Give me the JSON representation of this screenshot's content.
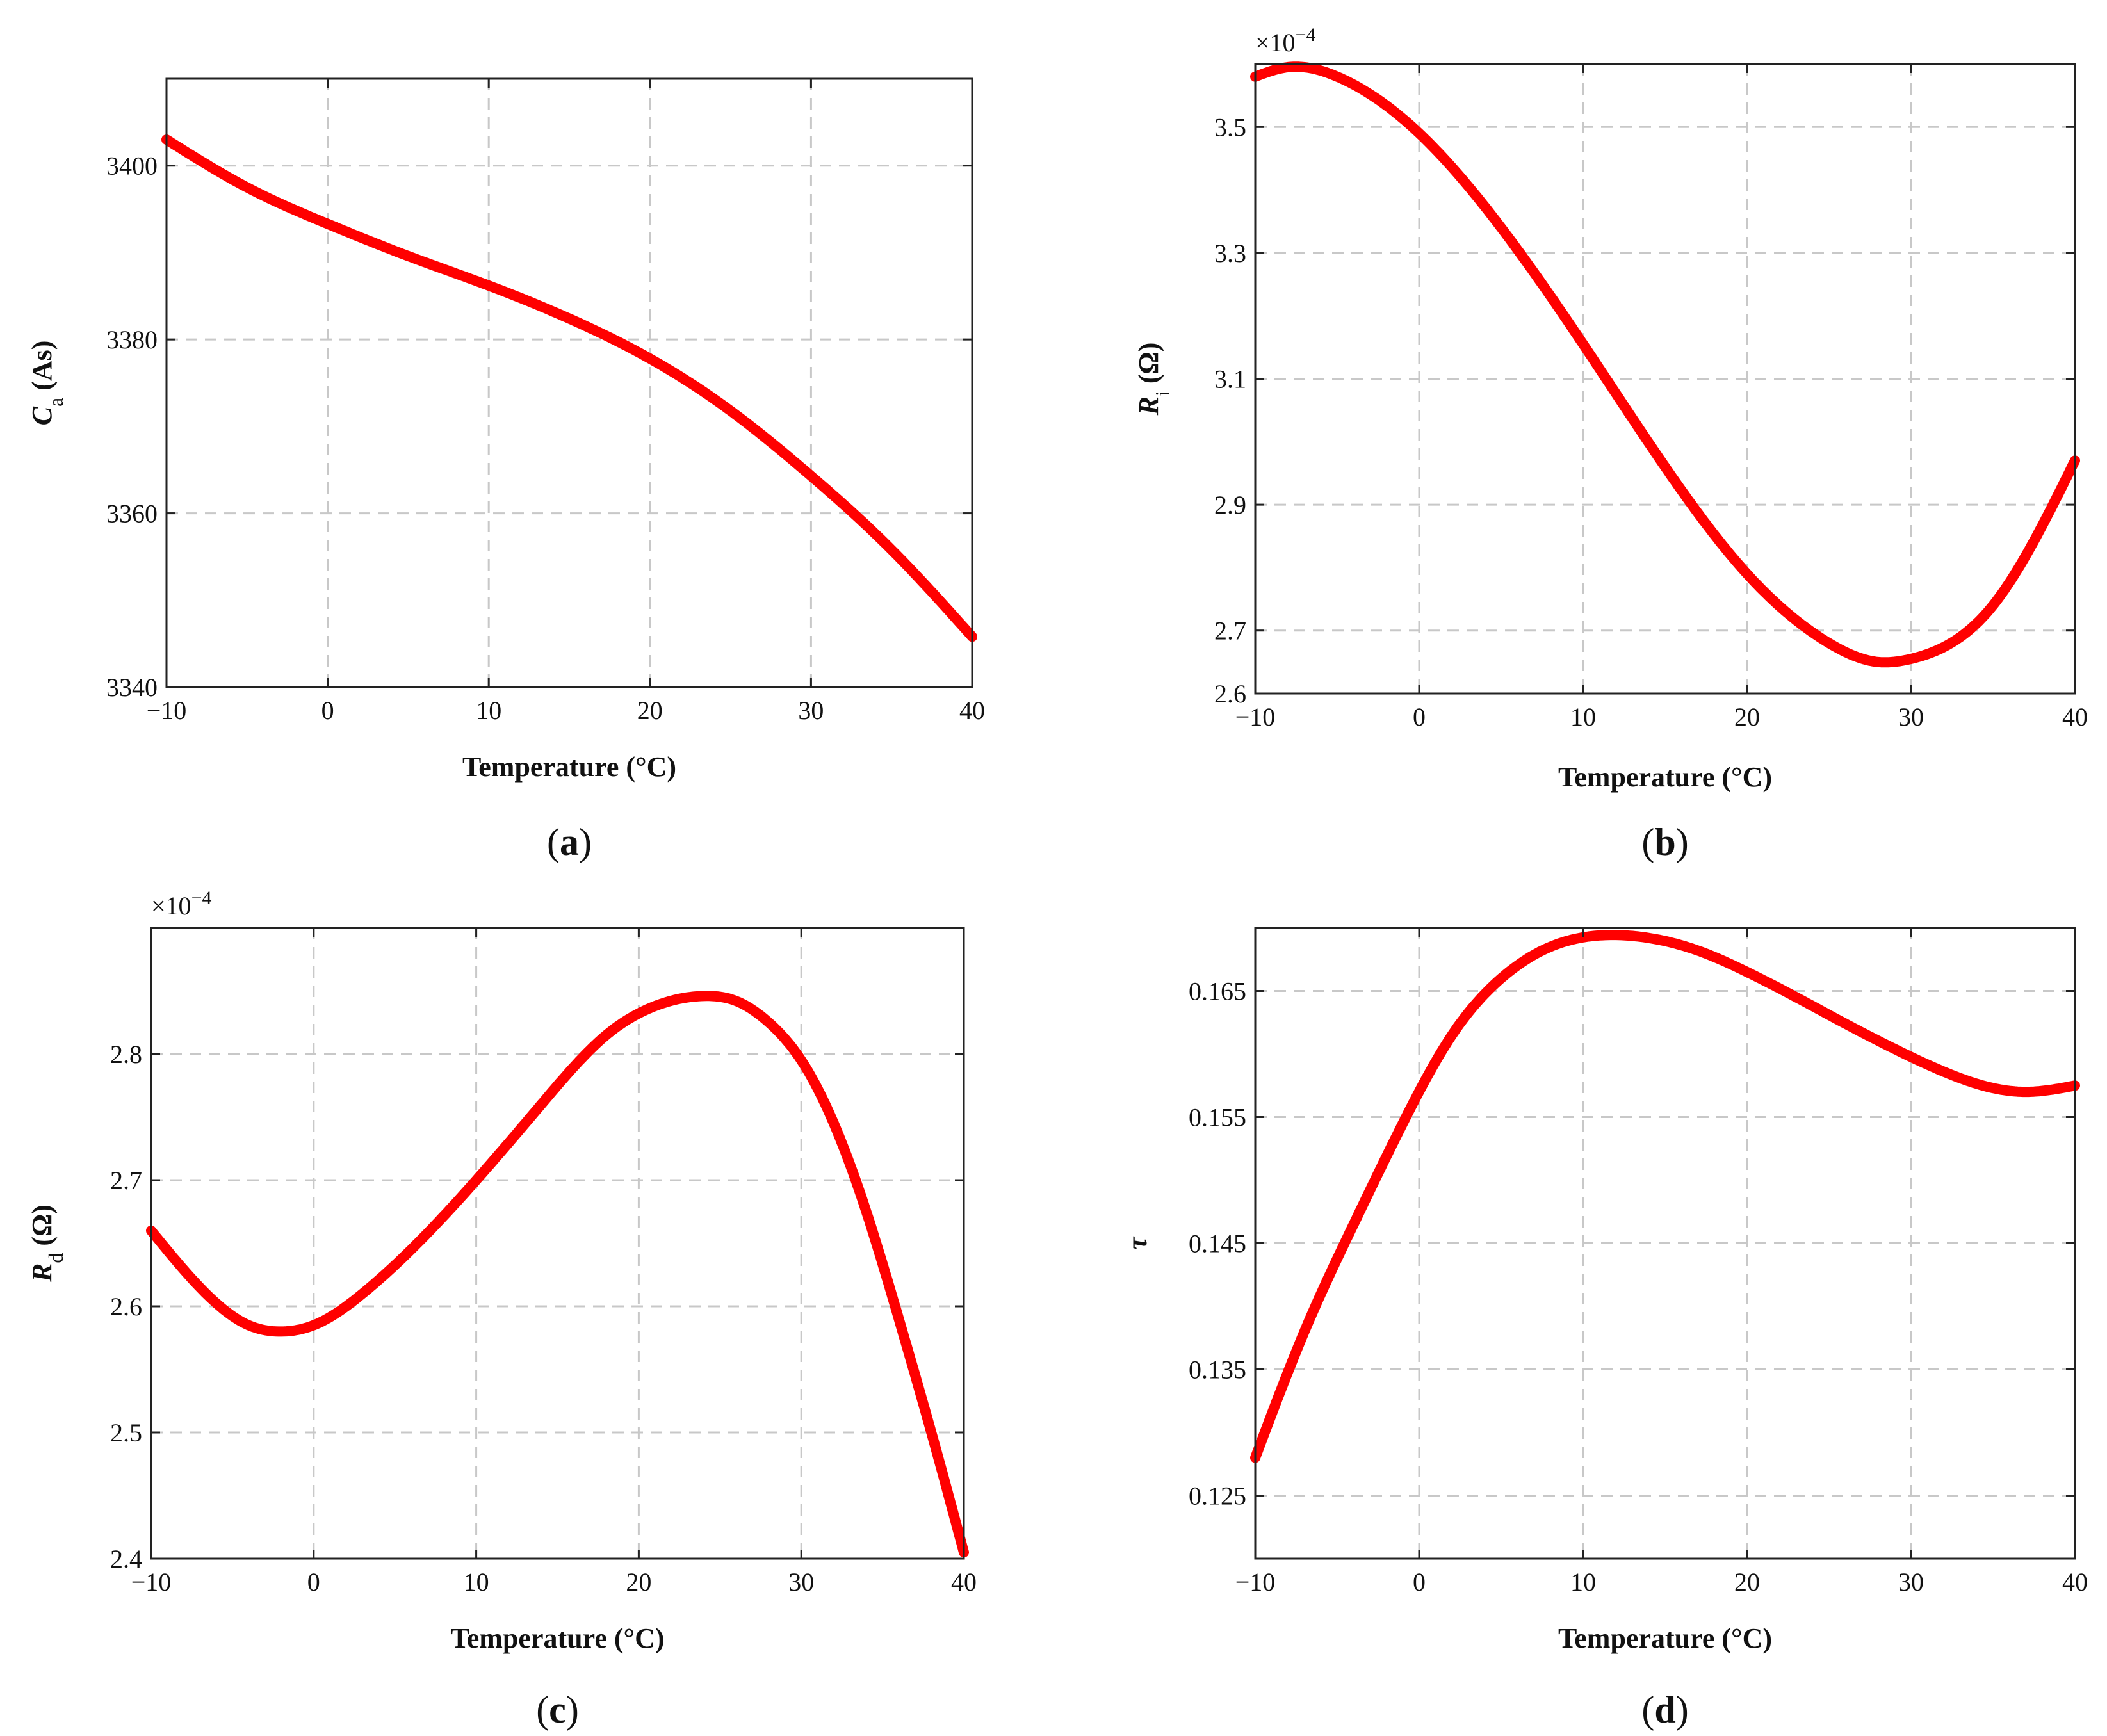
{
  "colors": {
    "curve": "#ff0000",
    "grid": "#c8c8c8",
    "axis": "#222222",
    "text": "#111111"
  },
  "chart_data": [
    {
      "id": "a",
      "type": "line",
      "caption_letter": "a",
      "xlabel": "Temperature (°C)",
      "ylabel_main": "C",
      "ylabel_sub": "a",
      "ylabel_unit": " (As)",
      "multiplier": "",
      "multiplier_exp": "",
      "xlim": [
        -10,
        40
      ],
      "ylim": [
        3340,
        3410
      ],
      "xticks": [
        -10,
        0,
        10,
        20,
        30,
        40
      ],
      "xtick_labels": [
        "−10",
        "0",
        "10",
        "20",
        "30",
        "40"
      ],
      "yticks": [
        3340,
        3360,
        3380,
        3400
      ],
      "ytick_labels": [
        "3340",
        "3360",
        "3380",
        "3400"
      ],
      "grid": true,
      "series": [
        {
          "name": "Ca",
          "x": [
            -10,
            -5,
            0,
            5,
            10,
            15,
            20,
            25,
            30,
            35,
            40
          ],
          "y": [
            3403,
            3397.5,
            3393.3,
            3389.6,
            3386.2,
            3382.4,
            3377.8,
            3371.8,
            3364.3,
            3355.8,
            3345.8
          ]
        }
      ]
    },
    {
      "id": "b",
      "type": "line",
      "caption_letter": "b",
      "xlabel": "Temperature (°C)",
      "ylabel_main": "R",
      "ylabel_sub": "i",
      "ylabel_unit": " (Ω)",
      "multiplier": "×10",
      "multiplier_exp": "−4",
      "xlim": [
        -10,
        40
      ],
      "ylim": [
        2.6,
        3.6
      ],
      "xticks": [
        -10,
        0,
        10,
        20,
        30,
        40
      ],
      "xtick_labels": [
        "−10",
        "0",
        "10",
        "20",
        "30",
        "40"
      ],
      "yticks": [
        2.6,
        2.7,
        2.9,
        3.1,
        3.3,
        3.5
      ],
      "ytick_labels": [
        "2.6",
        "2.7",
        "2.9",
        "3.1",
        "3.3",
        "3.5"
      ],
      "grid": true,
      "series": [
        {
          "name": "Ri",
          "x": [
            -10,
            -8,
            -5,
            0,
            5,
            10,
            15,
            20,
            25,
            28,
            30,
            35,
            40
          ],
          "y": [
            3.58,
            3.595,
            3.58,
            3.49,
            3.34,
            3.155,
            2.96,
            2.79,
            2.68,
            2.65,
            2.655,
            2.74,
            2.97
          ]
        }
      ]
    },
    {
      "id": "c",
      "type": "line",
      "caption_letter": "c",
      "xlabel": "Temperature (°C)",
      "ylabel_main": "R",
      "ylabel_sub": "d",
      "ylabel_unit": " (Ω)",
      "multiplier": "×10",
      "multiplier_exp": "−4",
      "xlim": [
        -10,
        40
      ],
      "ylim": [
        2.4,
        2.9
      ],
      "xticks": [
        -10,
        0,
        10,
        20,
        30,
        40
      ],
      "xtick_labels": [
        "−10",
        "0",
        "10",
        "20",
        "30",
        "40"
      ],
      "yticks": [
        2.4,
        2.5,
        2.6,
        2.7,
        2.8
      ],
      "ytick_labels": [
        "2.4",
        "2.5",
        "2.6",
        "2.7",
        "2.8"
      ],
      "grid": true,
      "series": [
        {
          "name": "Rd",
          "x": [
            -10,
            -7,
            -4,
            -2,
            0,
            3,
            6,
            10,
            14,
            18,
            21,
            24,
            26,
            28,
            30,
            32,
            34,
            36,
            38,
            40
          ],
          "y": [
            2.66,
            2.615,
            2.585,
            2.58,
            2.585,
            2.61,
            2.645,
            2.7,
            2.76,
            2.815,
            2.838,
            2.846,
            2.842,
            2.825,
            2.795,
            2.745,
            2.675,
            2.59,
            2.5,
            2.405
          ]
        }
      ]
    },
    {
      "id": "d",
      "type": "line",
      "caption_letter": "d",
      "xlabel": "Temperature (°C)",
      "ylabel_main": "τ",
      "ylabel_sub": "",
      "ylabel_unit": "",
      "multiplier": "",
      "multiplier_exp": "",
      "xlim": [
        -10,
        40
      ],
      "ylim": [
        0.12,
        0.17
      ],
      "xticks": [
        -10,
        0,
        10,
        20,
        30,
        40
      ],
      "xtick_labels": [
        "−10",
        "0",
        "10",
        "20",
        "30",
        "40"
      ],
      "yticks": [
        0.125,
        0.135,
        0.145,
        0.155,
        0.165
      ],
      "ytick_labels": [
        "0.125",
        "0.135",
        "0.145",
        "0.155",
        "0.165"
      ],
      "grid": true,
      "series": [
        {
          "name": "tau",
          "x": [
            -10,
            -7,
            -4,
            -1,
            2,
            5,
            8,
            11,
            14,
            17,
            20,
            23,
            26,
            29,
            32,
            35,
            37,
            40
          ],
          "y": [
            0.128,
            0.138,
            0.1465,
            0.1545,
            0.1615,
            0.166,
            0.1685,
            0.1694,
            0.1692,
            0.1682,
            0.1665,
            0.1645,
            0.1624,
            0.1604,
            0.1586,
            0.1573,
            0.157,
            0.1575
          ]
        }
      ]
    }
  ]
}
